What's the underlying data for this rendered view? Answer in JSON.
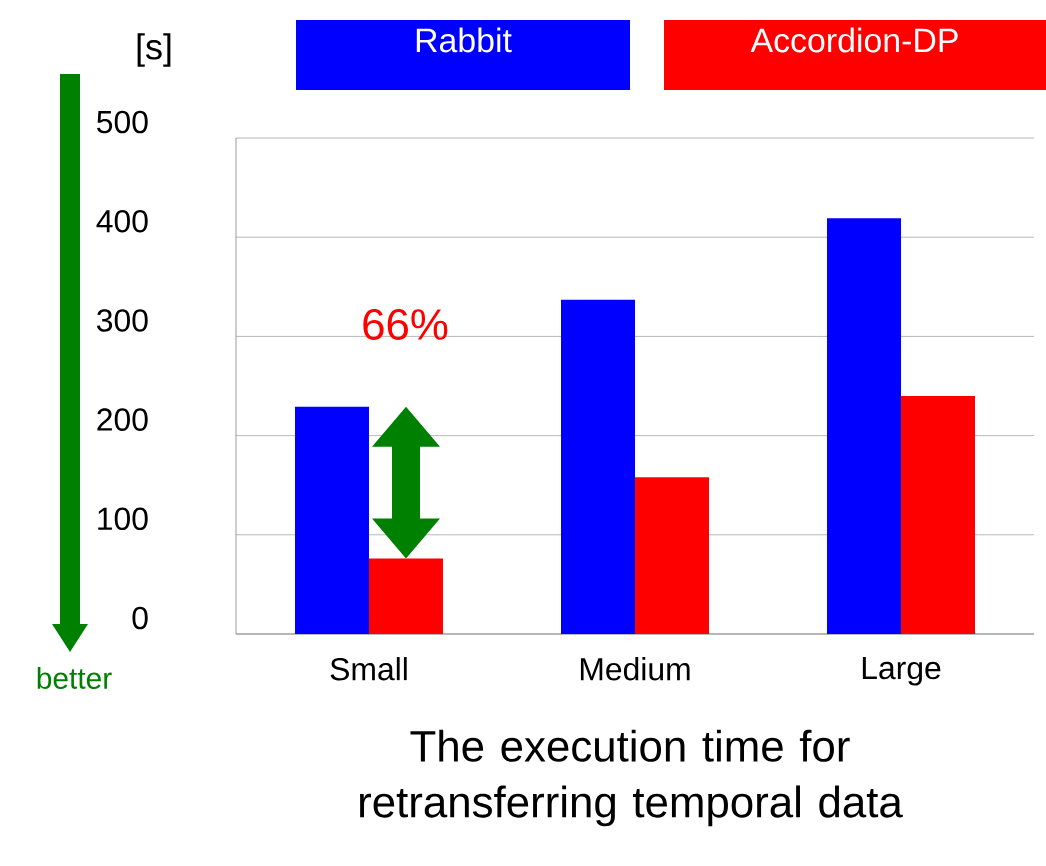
{
  "chart_data": {
    "type": "bar",
    "title": "The execution time for retransferring temporal data",
    "ylabel": "[s]",
    "categories": [
      "Small",
      "Medium",
      "Large"
    ],
    "series": [
      {
        "name": "Rabbit",
        "color": "#0000ff",
        "values": [
          229,
          337,
          419
        ]
      },
      {
        "name": "Accordion-DP",
        "color": "#ff0000",
        "values": [
          76,
          158,
          240
        ]
      }
    ],
    "ylim": [
      0,
      500
    ],
    "yticks": [
      0,
      100,
      200,
      300,
      400,
      500
    ],
    "grid": "y",
    "legend": "top",
    "annotations": [
      "66%",
      "better"
    ]
  }
}
